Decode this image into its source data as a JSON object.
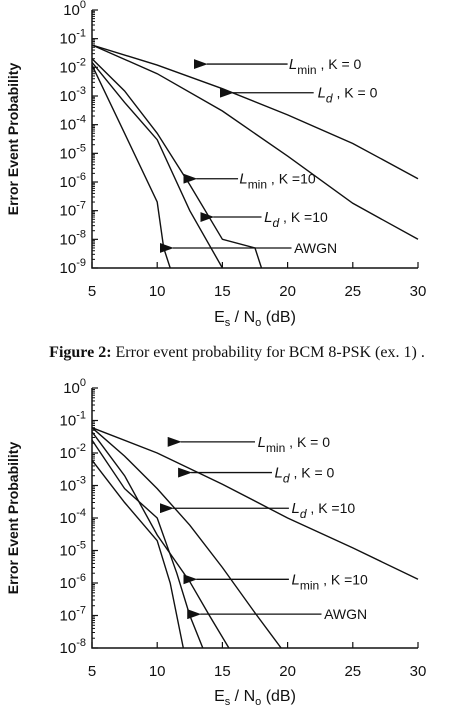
{
  "caption": {
    "label": "Figure 2:",
    "text": " Error event probability for BCM 8-PSK (ex. 1) ."
  },
  "chart_data": [
    {
      "type": "line",
      "title": "",
      "ylabel": "Error Event Probability",
      "xlabel_parts": [
        "E",
        "s",
        " / N",
        "o",
        " (dB)"
      ],
      "xlim": [
        5,
        30
      ],
      "x_ticks": [
        5,
        10,
        15,
        20,
        25,
        30
      ],
      "y_scale": "log",
      "ylim": [
        1e-09,
        1
      ],
      "y_exponents": [
        0,
        -1,
        -2,
        -3,
        -4,
        -5,
        -6,
        -7,
        -8,
        -9
      ],
      "grid": false,
      "series": [
        {
          "x": [
            5,
            10,
            15,
            20,
            25,
            30
          ],
          "y": [
            0.06,
            0.012,
            0.0018,
            0.00022,
            2.2e-05,
            1.3e-06
          ]
        },
        {
          "x": [
            5,
            10,
            15,
            20,
            25,
            30
          ],
          "y": [
            0.06,
            0.006,
            0.0003,
            8e-06,
            1.8e-07,
            1e-08
          ]
        },
        {
          "x": [
            5,
            7.5,
            10,
            12.5,
            15,
            17.5,
            18
          ],
          "y": [
            0.02,
            0.0015,
            5e-05,
            8e-07,
            1e-08,
            5e-09,
            1e-09
          ]
        },
        {
          "x": [
            5,
            7.5,
            10,
            12.5,
            15
          ],
          "y": [
            0.015,
            0.0006,
            3e-05,
            1e-07,
            1e-09
          ]
        },
        {
          "x": [
            5,
            7.5,
            10,
            10.5,
            11
          ],
          "y": [
            0.012,
            5e-05,
            2e-07,
            5e-09,
            1e-09
          ]
        }
      ],
      "annotations": [
        {
          "main": "L",
          "sub": "min",
          "rest": " , K = 0",
          "text_x": 20.1,
          "text_y": 0.013,
          "arrow_from_x": 20.0,
          "arrow_to_x": 13.8,
          "arrow_y": 0.013
        },
        {
          "main": "L",
          "sub": "d",
          "rest": " , K = 0",
          "text_x": 22.3,
          "text_y": 0.0013,
          "arrow_from_x": 22.0,
          "arrow_to_x": 15.8,
          "arrow_y": 0.0013
        },
        {
          "main": "L",
          "sub": "min",
          "rest": " , K =10",
          "text_x": 16.3,
          "text_y": 1.3e-06,
          "arrow_from_x": 16.2,
          "arrow_to_x": 13.0,
          "arrow_y": 1.3e-06
        },
        {
          "main": "L",
          "sub": "d",
          "rest": " , K =10",
          "text_x": 18.2,
          "text_y": 6e-08,
          "arrow_from_x": 18.0,
          "arrow_to_x": 14.3,
          "arrow_y": 6e-08
        },
        {
          "main": "AWGN",
          "sub": "",
          "rest": "",
          "text_x": 20.5,
          "text_y": 5e-09,
          "arrow_from_x": 20.3,
          "arrow_to_x": 11.2,
          "arrow_y": 5e-09
        }
      ]
    },
    {
      "type": "line",
      "title": "",
      "ylabel": "Error Event Probability",
      "xlabel_parts": [
        "E",
        "s",
        " / N",
        "o",
        " (dB)"
      ],
      "xlim": [
        5,
        30
      ],
      "x_ticks": [
        5,
        10,
        15,
        20,
        25,
        30
      ],
      "y_scale": "log",
      "ylim": [
        1e-08,
        1
      ],
      "y_exponents": [
        0,
        -1,
        -2,
        -3,
        -4,
        -5,
        -6,
        -7,
        -8
      ],
      "grid": false,
      "series": [
        {
          "x": [
            5,
            10,
            15,
            20,
            25,
            30
          ],
          "y": [
            0.06,
            0.01,
            0.0011,
            0.0001,
            1.2e-05,
            1.3e-06
          ]
        },
        {
          "x": [
            5,
            7.5,
            10,
            12.5,
            15,
            17.5,
            19.5
          ],
          "y": [
            0.06,
            0.008,
            0.0008,
            6e-05,
            3e-06,
            1.2e-07,
            1e-08
          ]
        },
        {
          "x": [
            5,
            7.5,
            10,
            12.5,
            14,
            15.5
          ],
          "y": [
            0.045,
            0.002,
            3e-05,
            1.1e-06,
            1e-07,
            1e-08
          ]
        },
        {
          "x": [
            5,
            7.5,
            10,
            11.5,
            12.5,
            13.5
          ],
          "y": [
            0.025,
            0.0008,
            0.0001,
            2e-06,
            1e-07,
            1e-08
          ]
        },
        {
          "x": [
            5,
            7.5,
            10,
            11,
            12
          ],
          "y": [
            0.006,
            0.0003,
            2e-05,
            1e-06,
            1e-08
          ]
        }
      ],
      "annotations": [
        {
          "main": "L",
          "sub": "min",
          "rest": " , K = 0",
          "text_x": 17.7,
          "text_y": 0.022,
          "arrow_from_x": 17.5,
          "arrow_to_x": 11.8,
          "arrow_y": 0.022
        },
        {
          "main": "L",
          "sub": "d",
          "rest": " , K = 0",
          "text_x": 19.0,
          "text_y": 0.0025,
          "arrow_from_x": 18.8,
          "arrow_to_x": 12.6,
          "arrow_y": 0.0025
        },
        {
          "main": "L",
          "sub": "d",
          "rest": " , K =10",
          "text_x": 20.3,
          "text_y": 0.0002,
          "arrow_from_x": 20.1,
          "arrow_to_x": 11.2,
          "arrow_y": 0.0002
        },
        {
          "main": "L",
          "sub": "min",
          "rest": " , K =10",
          "text_x": 20.3,
          "text_y": 1.3e-06,
          "arrow_from_x": 20.1,
          "arrow_to_x": 13.0,
          "arrow_y": 1.3e-06
        },
        {
          "main": "AWGN",
          "sub": "",
          "rest": "",
          "text_x": 22.8,
          "text_y": 1.1e-07,
          "arrow_from_x": 22.6,
          "arrow_to_x": 13.3,
          "arrow_y": 1.1e-07
        }
      ]
    }
  ]
}
